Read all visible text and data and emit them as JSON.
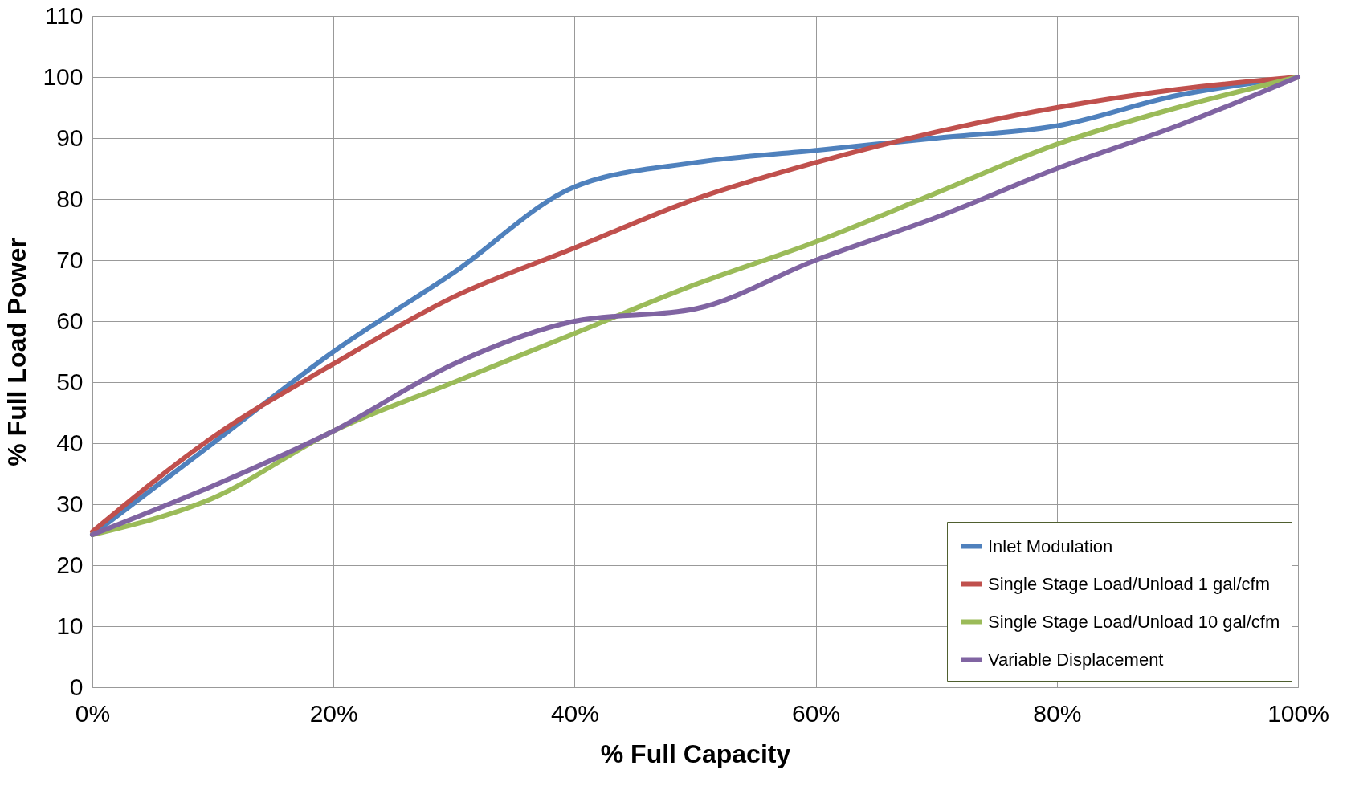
{
  "chart_data": {
    "type": "line",
    "xlabel": "%  Full Capacity",
    "ylabel": "% Full Load Power",
    "x": [
      0,
      10,
      20,
      30,
      40,
      50,
      60,
      70,
      80,
      90,
      100
    ],
    "series": [
      {
        "name": "Inlet Modulation",
        "color": "#4f81bd",
        "values": [
          25,
          40,
          55,
          68,
          82,
          86,
          88,
          90,
          92,
          97,
          100
        ]
      },
      {
        "name": "Single Stage Load/Unload 1 gal/cfm",
        "color": "#c0504d",
        "values": [
          25.5,
          41,
          53,
          64,
          72,
          80,
          86,
          91,
          95,
          98,
          100
        ]
      },
      {
        "name": "Single Stage Load/Unload 10 gal/cfm",
        "color": "#9bbb59",
        "values": [
          25,
          31,
          42,
          50,
          58,
          66,
          73,
          81,
          89,
          95,
          100
        ]
      },
      {
        "name": "Variable Displacement",
        "color": "#8064a2",
        "values": [
          25,
          33,
          42,
          53,
          60,
          62,
          70,
          77,
          85,
          92,
          100
        ]
      }
    ],
    "xlim": [
      0,
      100
    ],
    "xticks": [
      {
        "value": 0,
        "label": "0%"
      },
      {
        "value": 20,
        "label": "20%"
      },
      {
        "value": 40,
        "label": "40%"
      },
      {
        "value": 60,
        "label": "60%"
      },
      {
        "value": 80,
        "label": "80%"
      },
      {
        "value": 100,
        "label": "100%"
      }
    ],
    "ylim": [
      0,
      110
    ],
    "yticks": [
      0,
      10,
      20,
      30,
      40,
      50,
      60,
      70,
      80,
      90,
      100,
      110
    ],
    "grid": true,
    "legend": "bottom right",
    "marker": "none",
    "line_style": "solid"
  }
}
